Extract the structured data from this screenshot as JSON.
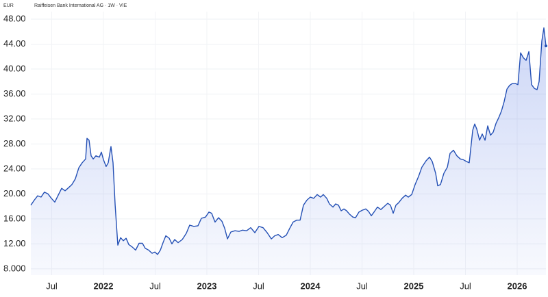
{
  "chart_data": {
    "type": "line",
    "unit_label": "EUR",
    "title": "Raiffeisen Bank International AG · 1W · VIE",
    "color": "#2450b5",
    "grid": true,
    "area": true,
    "xlim": [
      2021.298,
      2026.278
    ],
    "ylim": [
      7,
      49.2
    ],
    "yticks": [
      {
        "value": 8,
        "label": "8.000"
      },
      {
        "value": 12,
        "label": "12.00"
      },
      {
        "value": 16,
        "label": "16.00"
      },
      {
        "value": 20,
        "label": "20.00"
      },
      {
        "value": 24,
        "label": "24.00"
      },
      {
        "value": 28,
        "label": "28.00"
      },
      {
        "value": 32,
        "label": "32.00"
      },
      {
        "value": 36,
        "label": "36.00"
      },
      {
        "value": 40,
        "label": "40.00"
      },
      {
        "value": 44,
        "label": "44.00"
      },
      {
        "value": 48,
        "label": "48.00"
      }
    ],
    "xticks": [
      {
        "value": 2021.5,
        "label": "Jul"
      },
      2022,
      {
        "value": 2022.5,
        "label": "Jul"
      },
      2023,
      {
        "value": 2023.5,
        "label": "Jul"
      },
      2024,
      {
        "value": 2024.5,
        "label": "Jul"
      },
      2025,
      {
        "value": 2025.5,
        "label": "Jul"
      },
      2026
    ],
    "x": [
      2021.298,
      2021.331,
      2021.364,
      2021.397,
      2021.43,
      2021.464,
      2021.497,
      2021.53,
      2021.563,
      2021.596,
      2021.629,
      2021.662,
      2021.695,
      2021.728,
      2021.762,
      2021.795,
      2021.828,
      2021.841,
      2021.861,
      2021.881,
      2021.901,
      2021.927,
      2021.96,
      2021.98,
      2022.0,
      2022.026,
      2022.046,
      2022.073,
      2022.093,
      2022.113,
      2022.139,
      2022.166,
      2022.192,
      2022.219,
      2022.245,
      2022.278,
      2022.311,
      2022.344,
      2022.377,
      2022.404,
      2022.437,
      2022.47,
      2022.497,
      2022.523,
      2022.55,
      2022.576,
      2022.603,
      2022.636,
      2022.662,
      2022.689,
      2022.722,
      2022.762,
      2022.801,
      2022.834,
      2022.874,
      2022.914,
      2022.947,
      2022.987,
      2023.02,
      2023.046,
      2023.079,
      2023.113,
      2023.146,
      2023.172,
      2023.199,
      2023.232,
      2023.272,
      2023.311,
      2023.344,
      2023.384,
      2023.424,
      2023.464,
      2023.503,
      2023.543,
      2023.583,
      2023.623,
      2023.656,
      2023.689,
      2023.728,
      2023.768,
      2023.801,
      2023.834,
      2023.868,
      2023.901,
      2023.934,
      2023.967,
      2024.0,
      2024.033,
      2024.066,
      2024.099,
      2024.126,
      2024.159,
      2024.185,
      2024.219,
      2024.245,
      2024.272,
      2024.298,
      2024.325,
      2024.351,
      2024.377,
      2024.411,
      2024.437,
      2024.47,
      2024.503,
      2024.536,
      2024.563,
      2024.589,
      2024.616,
      2024.649,
      2024.682,
      2024.715,
      2024.748,
      2024.775,
      2024.801,
      2024.828,
      2024.854,
      2024.887,
      2024.921,
      2024.947,
      2024.98,
      2025.013,
      2025.046,
      2025.079,
      2025.119,
      2025.152,
      2025.179,
      2025.212,
      2025.232,
      2025.258,
      2025.291,
      2025.325,
      2025.351,
      2025.384,
      2025.417,
      2025.45,
      2025.477,
      2025.51,
      2025.536,
      2025.57,
      2025.589,
      2025.609,
      2025.636,
      2025.662,
      2025.689,
      2025.715,
      2025.742,
      2025.768,
      2025.795,
      2025.821,
      2025.848,
      2025.874,
      2025.901,
      2025.927,
      2025.954,
      2025.98,
      2026.007,
      2026.033,
      2026.06,
      2026.086,
      2026.113,
      2026.139,
      2026.166,
      2026.192,
      2026.212,
      2026.238,
      2026.258,
      2026.278
    ],
    "values": [
      18.2,
      19.0,
      19.7,
      19.5,
      20.3,
      20.0,
      19.3,
      18.7,
      19.8,
      20.9,
      20.5,
      21.0,
      21.5,
      22.4,
      24.2,
      25.0,
      25.6,
      28.9,
      28.6,
      26.1,
      25.6,
      26.1,
      25.9,
      26.7,
      25.5,
      24.4,
      25.0,
      27.6,
      25.0,
      18.2,
      11.8,
      13.0,
      12.5,
      12.9,
      11.9,
      11.5,
      11.0,
      12.1,
      12.1,
      11.3,
      11.0,
      10.5,
      10.7,
      10.3,
      11.0,
      12.2,
      13.3,
      12.9,
      12.0,
      12.7,
      12.2,
      12.7,
      13.7,
      15.0,
      14.8,
      14.9,
      16.1,
      16.3,
      17.1,
      16.9,
      15.5,
      16.2,
      15.6,
      14.5,
      12.8,
      13.9,
      14.1,
      14.0,
      14.2,
      14.1,
      14.6,
      13.8,
      14.8,
      14.6,
      13.8,
      12.8,
      13.3,
      13.5,
      13.0,
      13.4,
      14.5,
      15.5,
      15.8,
      15.8,
      18.2,
      19.0,
      19.5,
      19.3,
      19.9,
      19.5,
      19.9,
      19.3,
      18.4,
      17.9,
      18.4,
      18.2,
      17.3,
      17.6,
      17.3,
      16.8,
      16.3,
      16.2,
      17.1,
      17.4,
      17.6,
      17.2,
      16.5,
      17.1,
      17.9,
      17.5,
      18.0,
      18.5,
      18.2,
      16.9,
      18.2,
      18.6,
      19.3,
      19.8,
      19.5,
      19.9,
      21.5,
      22.8,
      24.3,
      25.3,
      25.9,
      25.2,
      23.3,
      21.3,
      21.5,
      23.3,
      24.3,
      26.5,
      27.0,
      26.1,
      25.6,
      25.5,
      25.2,
      25.0,
      30.2,
      31.2,
      30.4,
      28.6,
      29.6,
      28.6,
      30.9,
      29.4,
      29.9,
      31.3,
      32.2,
      33.3,
      34.8,
      36.8,
      37.4,
      37.7,
      37.7,
      37.5,
      42.6,
      41.8,
      41.4,
      42.8,
      37.5,
      36.9,
      36.7,
      38.0,
      44.5,
      46.6,
      43.7
    ]
  }
}
